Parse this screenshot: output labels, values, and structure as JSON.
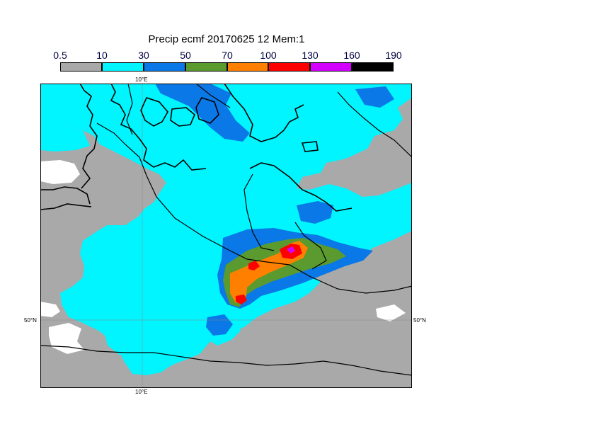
{
  "title": "Precip ecmf 20170625 12 Mem:1",
  "legend": {
    "labels": [
      "0.5",
      "10",
      "30",
      "50",
      "70",
      "100",
      "130",
      "160",
      "190"
    ],
    "colors": [
      "#a9a9a9",
      "#00f5ff",
      "#0a78e6",
      "#5a9a2e",
      "#ff8000",
      "#ff0000",
      "#d400ff",
      "#000000"
    ]
  },
  "grid_labels": {
    "lon_top": "10°E",
    "lon_bottom": "10°E",
    "lat_left": "50°N",
    "lat_right": "50°N"
  }
}
